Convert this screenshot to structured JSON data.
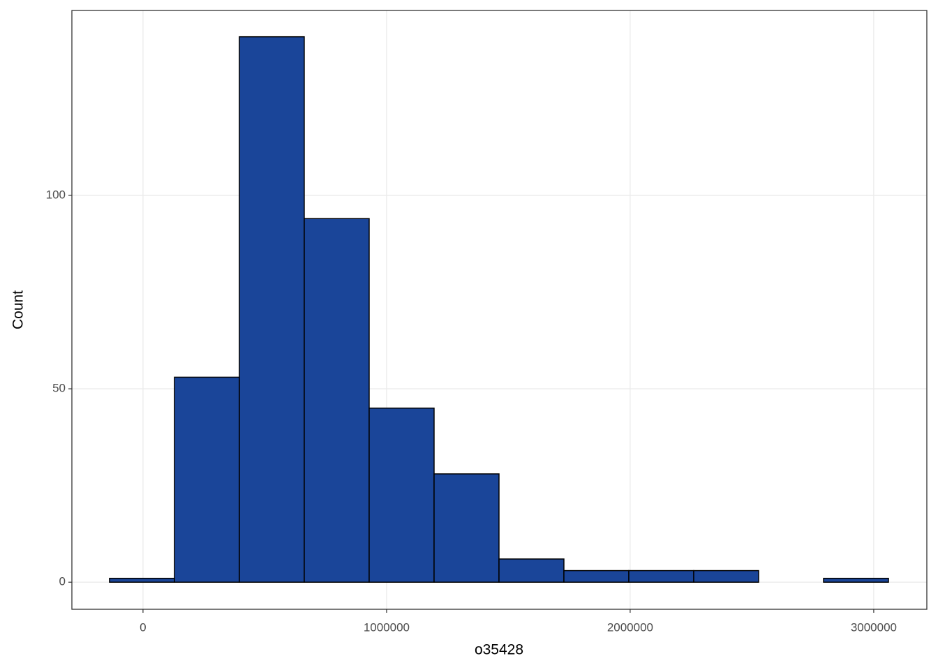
{
  "chart_data": {
    "type": "histogram",
    "x_label": "o35428",
    "y_label": "Count",
    "bins": [
      -137500,
      129000,
      395500,
      662000,
      928500,
      1195000,
      1461500,
      1728000,
      1994500,
      2261000,
      2527500,
      2794000,
      3060500
    ],
    "values": [
      1,
      53,
      141,
      94,
      45,
      28,
      6,
      3,
      3,
      3,
      0,
      1
    ],
    "color": "#1a4599",
    "xlim": [
      -292000,
      3218000
    ],
    "ylim": [
      -7,
      147.8
    ],
    "xticks": [
      0,
      1000000,
      2000000,
      3000000
    ],
    "yticks": [
      0,
      50,
      100
    ],
    "grid": true
  }
}
